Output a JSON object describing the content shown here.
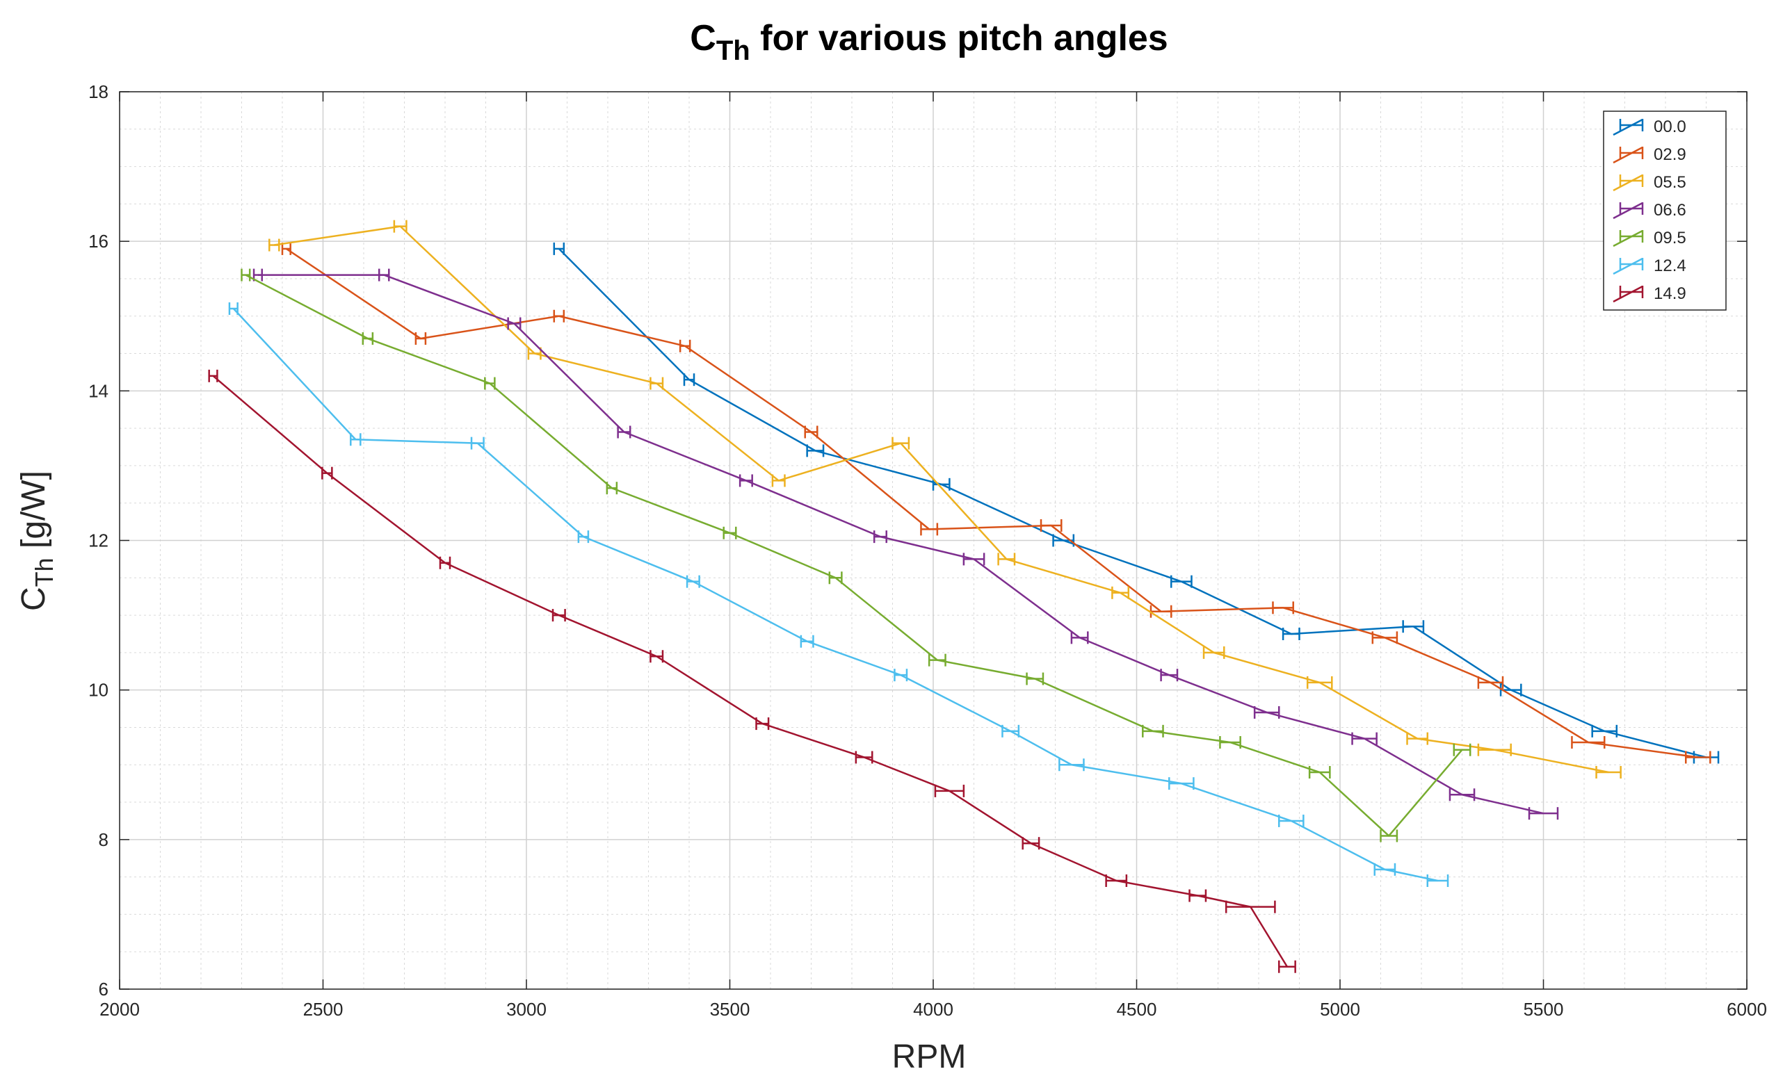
{
  "chart_data": {
    "type": "line",
    "title_main": "C",
    "title_sub": "Th",
    "title_rest": " for various pitch angles",
    "xlabel": "RPM",
    "ylabel_main": "C",
    "ylabel_sub": "Th",
    "ylabel_rest": "  [g/W]",
    "xlim": [
      2000,
      6000
    ],
    "ylim": [
      6,
      18
    ],
    "xticks": [
      2000,
      2500,
      3000,
      3500,
      4000,
      4500,
      5000,
      5500,
      6000
    ],
    "yticks": [
      6,
      8,
      10,
      12,
      14,
      16,
      18
    ],
    "grid": true,
    "minor_grid": true,
    "legend_position": "top-right",
    "error_bars": "horizontal",
    "series": [
      {
        "name": "00.0",
        "color": "#0072BD",
        "x": [
          3080,
          3400,
          3710,
          4020,
          4320,
          4610,
          4880,
          5180,
          5420,
          5650,
          5900
        ],
        "y": [
          15.9,
          14.15,
          13.2,
          12.75,
          12.0,
          11.45,
          10.75,
          10.85,
          10.0,
          9.45,
          9.1
        ],
        "xerr": [
          12,
          12,
          20,
          20,
          25,
          25,
          20,
          25,
          25,
          30,
          30
        ]
      },
      {
        "name": "02.9",
        "color": "#D95319",
        "x": [
          2410,
          2740,
          3080,
          3390,
          3700,
          3990,
          4290,
          4560,
          4860,
          5110,
          5370,
          5610,
          5880
        ],
        "y": [
          15.9,
          14.7,
          15.0,
          14.6,
          13.45,
          12.15,
          12.2,
          11.05,
          11.1,
          10.7,
          10.1,
          9.3,
          9.1
        ],
        "xerr": [
          10,
          12,
          12,
          12,
          15,
          20,
          25,
          25,
          25,
          30,
          30,
          40,
          30
        ]
      },
      {
        "name": "05.5",
        "color": "#EDB120",
        "x": [
          2380,
          2690,
          3020,
          3320,
          3620,
          3920,
          4180,
          4460,
          4690,
          4950,
          5190,
          5380,
          5660
        ],
        "y": [
          15.95,
          16.2,
          14.5,
          14.1,
          12.8,
          13.3,
          11.75,
          11.3,
          10.5,
          10.1,
          9.35,
          9.2,
          8.9
        ],
        "xerr": [
          12,
          15,
          15,
          15,
          15,
          20,
          20,
          20,
          25,
          30,
          25,
          40,
          30
        ]
      },
      {
        "name": "06.6",
        "color": "#7E2F8E",
        "x": [
          2340,
          2650,
          2970,
          3240,
          3540,
          3870,
          4100,
          4360,
          4580,
          4820,
          5060,
          5300,
          5500
        ],
        "y": [
          15.55,
          15.55,
          14.9,
          13.45,
          12.8,
          12.05,
          11.75,
          10.7,
          10.2,
          9.7,
          9.35,
          8.6,
          8.35
        ],
        "xerr": [
          10,
          12,
          15,
          15,
          15,
          15,
          25,
          20,
          20,
          30,
          30,
          30,
          35
        ]
      },
      {
        "name": "09.5",
        "color": "#77AC30",
        "x": [
          2310,
          2610,
          2910,
          3210,
          3500,
          3760,
          4010,
          4250,
          4540,
          4730,
          4950,
          5120,
          5300
        ],
        "y": [
          15.55,
          14.7,
          14.1,
          12.7,
          12.1,
          11.5,
          10.4,
          10.15,
          9.45,
          9.3,
          8.9,
          8.05,
          9.2
        ],
        "xerr": [
          10,
          12,
          12,
          12,
          15,
          15,
          20,
          20,
          25,
          25,
          25,
          20,
          20
        ]
      },
      {
        "name": "12.4",
        "color": "#4DBEEE",
        "x": [
          2280,
          2580,
          2880,
          3140,
          3410,
          3690,
          3920,
          4190,
          4340,
          4610,
          4880,
          5110,
          5240
        ],
        "y": [
          15.1,
          13.35,
          13.3,
          12.05,
          11.45,
          10.65,
          10.2,
          9.45,
          9.0,
          8.75,
          8.25,
          7.6,
          7.45
        ],
        "xerr": [
          10,
          12,
          15,
          12,
          15,
          15,
          15,
          20,
          30,
          30,
          30,
          25,
          25
        ]
      },
      {
        "name": "14.9",
        "color": "#A2142F",
        "x": [
          2230,
          2510,
          2800,
          3080,
          3320,
          3580,
          3830,
          4040,
          4240,
          4450,
          4650,
          4780,
          4870
        ],
        "y": [
          14.2,
          12.9,
          11.7,
          11.0,
          10.45,
          9.55,
          9.1,
          8.65,
          7.95,
          7.45,
          7.25,
          7.1,
          6.3
        ],
        "xerr": [
          10,
          12,
          12,
          15,
          15,
          15,
          20,
          35,
          20,
          25,
          20,
          60,
          20
        ]
      }
    ]
  }
}
